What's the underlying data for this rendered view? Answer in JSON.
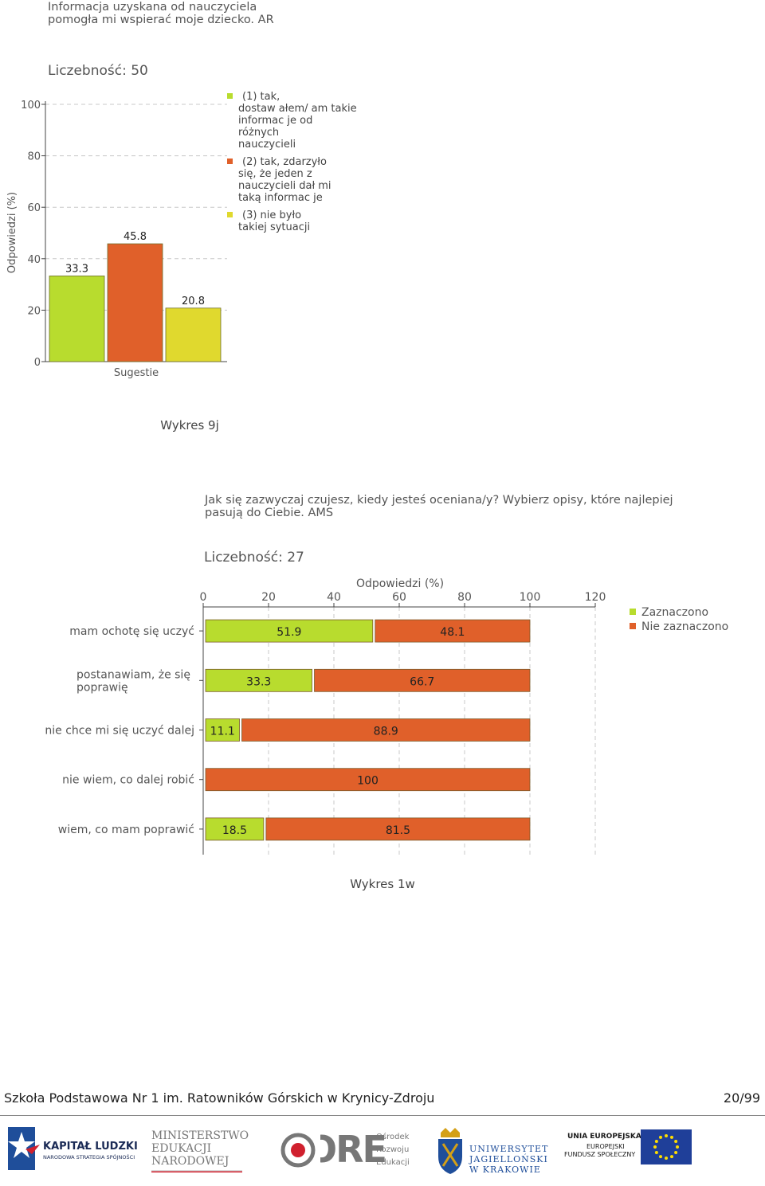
{
  "chart_data": [
    {
      "type": "bar",
      "title": "Informacja uzyskana od nauczyciela\npomogła mi wspierać moje dziecko. AR",
      "count_label": "Liczebność: 50",
      "ylabel": "Odpowiedzi (%)",
      "xlabel": "Sugestie",
      "ylim": [
        0,
        100
      ],
      "yticks": [
        "0",
        "20",
        "40",
        "60",
        "80",
        "100"
      ],
      "grid": true,
      "legend_position": "right",
      "series": [
        {
          "name": "(1) tak, dostaw ałem/ am takie informacje od różnych nauczycieli",
          "legend_lines": [
            "(1) tak,",
            "dostaw ałem/ am takie",
            "informac je od",
            "różnych",
            "nauczycieli"
          ],
          "value": 33.3,
          "label": "33.3",
          "color": "#b8dc2e"
        },
        {
          "name": "(2) tak, zdarzyło się, że jeden z nauczycieli dał mi taką informacje",
          "legend_lines": [
            "(2) tak, zdarzyło",
            "się, że jeden z",
            "nauczycieli dał mi",
            "taką informac je"
          ],
          "value": 45.8,
          "label": "45.8",
          "color": "#e0602a"
        },
        {
          "name": "(3) nie było takiej sytuacji",
          "legend_lines": [
            "(3) nie było",
            "takiej sytuacji"
          ],
          "value": 20.8,
          "label": "20.8",
          "color": "#e0d92e"
        }
      ]
    },
    {
      "type": "bar",
      "orientation": "horizontal",
      "stacked": true,
      "title": "Jak się zazwyczaj czujesz, kiedy jesteś oceniana/y? Wybierz opisy, które najlepiej\npasują do Ciebie. AMS",
      "count_label": "Liczebność: 27",
      "xlabel": "Odpowiedzi (%)",
      "xlim": [
        0,
        120
      ],
      "xticks": [
        "0",
        "20",
        "40",
        "60",
        "80",
        "100",
        "120"
      ],
      "grid": true,
      "legend_position": "right",
      "categories": [
        [
          "mam ochotę się uczyć"
        ],
        [
          "postanawiam, że się",
          "poprawię"
        ],
        [
          "nie chce mi się uczyć dalej"
        ],
        [
          "nie wiem, co dalej robić"
        ],
        [
          "wiem, co mam poprawić"
        ]
      ],
      "series": [
        {
          "name": "Zaznaczono",
          "color": "#b8dc2e",
          "values": [
            51.9,
            33.3,
            11.1,
            0,
            18.5
          ],
          "labels": [
            "51.9",
            "33.3",
            "11.1",
            "",
            "18.5"
          ]
        },
        {
          "name": "Nie zaznaczono",
          "color": "#e0602a",
          "values": [
            48.1,
            66.7,
            88.9,
            100,
            81.5
          ],
          "labels": [
            "48.1",
            "66.7",
            "88.9",
            "100",
            "81.5"
          ]
        }
      ]
    }
  ],
  "captions": {
    "chart1": "Wykres 9j",
    "chart2": "Wykres 1w"
  },
  "footer": {
    "school": "Szkoła Podstawowa Nr 1 im. Ratowników Górskich w Krynicy-Zdroju",
    "page": "20/99"
  },
  "logos": {
    "kapital_line1": "KAPITAŁ LUDZKI",
    "kapital_line2": "NARODOWA STRATEGIA SPÓJNOŚCI",
    "ministry_line1": "MINISTERSTWO",
    "ministry_line2": "EDUKACJI",
    "ministry_line3": "NARODOWEJ",
    "ore_word": "ORE",
    "ore_line1": "Ośrodek",
    "ore_line2": "Rozwoju",
    "ore_line3": "Edukacji",
    "uj_line1": "UNIWERSYTET",
    "uj_line2": "JAGIELLOŃSKI",
    "uj_line3": "W KRAKOWIE",
    "eu_line1": "UNIA EUROPEJSKA",
    "eu_line2": "EUROPEJSKI",
    "eu_line3": "FUNDUSZ SPOŁECZNY"
  }
}
